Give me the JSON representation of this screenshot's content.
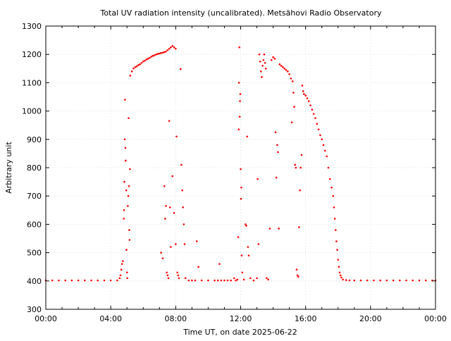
{
  "chart_data": {
    "type": "scatter",
    "title": "Total UV radiation intensity (uncalibrated). Metsähovi Radio Observatory",
    "xlabel": "Time UT, on date 2025-06-22",
    "ylabel": "Arbitrary unit",
    "xlim": [
      0,
      24
    ],
    "ylim": [
      300,
      1300
    ],
    "grid": true,
    "marker_color": "#ff0000",
    "x_ticks": [
      {
        "value": 0,
        "label": "00:00"
      },
      {
        "value": 4,
        "label": "04:00"
      },
      {
        "value": 8,
        "label": "08:00"
      },
      {
        "value": 12,
        "label": "12:00"
      },
      {
        "value": 16,
        "label": "16:00"
      },
      {
        "value": 20,
        "label": "20:00"
      },
      {
        "value": 24,
        "label": "00:00"
      }
    ],
    "y_ticks": [
      {
        "value": 300,
        "label": "300"
      },
      {
        "value": 400,
        "label": "400"
      },
      {
        "value": 500,
        "label": "500"
      },
      {
        "value": 600,
        "label": "600"
      },
      {
        "value": 700,
        "label": "700"
      },
      {
        "value": 800,
        "label": "800"
      },
      {
        "value": 900,
        "label": "900"
      },
      {
        "value": 1000,
        "label": "1000"
      },
      {
        "value": 1100,
        "label": "1100"
      },
      {
        "value": 1200,
        "label": "1200"
      },
      {
        "value": 1300,
        "label": "1300"
      }
    ],
    "points": [
      [
        0.0,
        402
      ],
      [
        0.4,
        402
      ],
      [
        0.8,
        402
      ],
      [
        1.2,
        402
      ],
      [
        1.6,
        402
      ],
      [
        2.0,
        402
      ],
      [
        2.4,
        402
      ],
      [
        2.8,
        402
      ],
      [
        3.2,
        402
      ],
      [
        3.6,
        402
      ],
      [
        4.0,
        402
      ],
      [
        4.4,
        402
      ],
      [
        4.55,
        410
      ],
      [
        4.6,
        420
      ],
      [
        4.65,
        440
      ],
      [
        4.7,
        460
      ],
      [
        4.75,
        470
      ],
      [
        4.8,
        620
      ],
      [
        4.82,
        650
      ],
      [
        4.84,
        750
      ],
      [
        4.86,
        900
      ],
      [
        4.88,
        1040
      ],
      [
        4.9,
        870
      ],
      [
        4.92,
        825
      ],
      [
        4.95,
        720
      ],
      [
        4.97,
        510
      ],
      [
        5.0,
        430
      ],
      [
        5.02,
        410
      ],
      [
        5.05,
        665
      ],
      [
        5.08,
        700
      ],
      [
        5.1,
        975
      ],
      [
        5.12,
        735
      ],
      [
        5.14,
        580
      ],
      [
        5.16,
        545
      ],
      [
        5.18,
        795
      ],
      [
        5.2,
        1125
      ],
      [
        5.3,
        1140
      ],
      [
        5.4,
        1150
      ],
      [
        5.5,
        1155
      ],
      [
        5.6,
        1158
      ],
      [
        5.7,
        1162
      ],
      [
        5.8,
        1165
      ],
      [
        5.9,
        1170
      ],
      [
        6.0,
        1175
      ],
      [
        6.1,
        1178
      ],
      [
        6.2,
        1182
      ],
      [
        6.3,
        1185
      ],
      [
        6.4,
        1188
      ],
      [
        6.5,
        1192
      ],
      [
        6.6,
        1195
      ],
      [
        6.7,
        1197
      ],
      [
        6.8,
        1200
      ],
      [
        6.9,
        1202
      ],
      [
        7.0,
        1203
      ],
      [
        7.1,
        1205
      ],
      [
        7.2,
        1206
      ],
      [
        7.3,
        1208
      ],
      [
        7.4,
        1210
      ],
      [
        7.5,
        1215
      ],
      [
        7.6,
        1220
      ],
      [
        7.7,
        1225
      ],
      [
        7.8,
        1230
      ],
      [
        7.9,
        1225
      ],
      [
        8.0,
        1220
      ],
      [
        7.1,
        500
      ],
      [
        7.2,
        480
      ],
      [
        7.3,
        735
      ],
      [
        7.35,
        620
      ],
      [
        7.4,
        665
      ],
      [
        7.45,
        430
      ],
      [
        7.5,
        420
      ],
      [
        7.55,
        410
      ],
      [
        7.6,
        965
      ],
      [
        7.65,
        660
      ],
      [
        7.7,
        520
      ],
      [
        7.8,
        770
      ],
      [
        7.9,
        640
      ],
      [
        8.0,
        530
      ],
      [
        8.05,
        910
      ],
      [
        8.1,
        430
      ],
      [
        8.15,
        420
      ],
      [
        8.2,
        410
      ],
      [
        8.3,
        1148
      ],
      [
        8.35,
        810
      ],
      [
        8.4,
        720
      ],
      [
        8.45,
        660
      ],
      [
        8.5,
        600
      ],
      [
        8.55,
        530
      ],
      [
        8.6,
        410
      ],
      [
        8.8,
        402
      ],
      [
        9.0,
        402
      ],
      [
        9.2,
        402
      ],
      [
        9.3,
        540
      ],
      [
        9.4,
        450
      ],
      [
        9.6,
        402
      ],
      [
        10.0,
        402
      ],
      [
        10.4,
        402
      ],
      [
        10.6,
        402
      ],
      [
        10.7,
        460
      ],
      [
        10.8,
        402
      ],
      [
        11.0,
        402
      ],
      [
        11.2,
        402
      ],
      [
        11.4,
        402
      ],
      [
        11.6,
        410
      ],
      [
        11.7,
        402
      ],
      [
        11.8,
        405
      ],
      [
        11.85,
        555
      ],
      [
        11.88,
        935
      ],
      [
        11.9,
        1100
      ],
      [
        11.92,
        1225
      ],
      [
        11.94,
        980
      ],
      [
        11.96,
        1035
      ],
      [
        11.98,
        1060
      ],
      [
        12.0,
        795
      ],
      [
        12.02,
        690
      ],
      [
        12.04,
        730
      ],
      [
        12.06,
        490
      ],
      [
        12.1,
        430
      ],
      [
        12.2,
        405
      ],
      [
        12.3,
        600
      ],
      [
        12.35,
        595
      ],
      [
        12.4,
        910
      ],
      [
        12.45,
        520
      ],
      [
        12.5,
        490
      ],
      [
        12.6,
        410
      ],
      [
        12.8,
        402
      ],
      [
        13.0,
        410
      ],
      [
        13.05,
        760
      ],
      [
        13.1,
        530
      ],
      [
        13.15,
        1200
      ],
      [
        13.2,
        1175
      ],
      [
        13.25,
        1140
      ],
      [
        13.3,
        1120
      ],
      [
        13.35,
        1160
      ],
      [
        13.4,
        1180
      ],
      [
        13.45,
        1200
      ],
      [
        13.5,
        1170
      ],
      [
        13.55,
        1150
      ],
      [
        13.6,
        410
      ],
      [
        13.7,
        405
      ],
      [
        13.8,
        585
      ],
      [
        13.9,
        1180
      ],
      [
        14.0,
        1190
      ],
      [
        14.1,
        1185
      ],
      [
        14.15,
        925
      ],
      [
        14.2,
        765
      ],
      [
        14.25,
        880
      ],
      [
        14.3,
        855
      ],
      [
        14.35,
        585
      ],
      [
        14.4,
        1165
      ],
      [
        14.5,
        1160
      ],
      [
        14.6,
        1155
      ],
      [
        14.7,
        1150
      ],
      [
        14.8,
        1145
      ],
      [
        14.9,
        1140
      ],
      [
        15.0,
        1130
      ],
      [
        15.1,
        1115
      ],
      [
        15.15,
        960
      ],
      [
        15.2,
        1105
      ],
      [
        15.25,
        1065
      ],
      [
        15.3,
        1015
      ],
      [
        15.35,
        810
      ],
      [
        15.4,
        800
      ],
      [
        15.45,
        440
      ],
      [
        15.5,
        420
      ],
      [
        15.55,
        415
      ],
      [
        15.6,
        590
      ],
      [
        15.65,
        720
      ],
      [
        15.7,
        800
      ],
      [
        15.75,
        845
      ],
      [
        15.8,
        1090
      ],
      [
        15.85,
        1070
      ],
      [
        15.9,
        1060
      ],
      [
        16.0,
        1055
      ],
      [
        16.1,
        1045
      ],
      [
        16.2,
        1035
      ],
      [
        16.3,
        1020
      ],
      [
        16.4,
        1005
      ],
      [
        16.5,
        990
      ],
      [
        16.6,
        975
      ],
      [
        16.7,
        955
      ],
      [
        16.8,
        935
      ],
      [
        16.9,
        915
      ],
      [
        17.0,
        900
      ],
      [
        17.1,
        880
      ],
      [
        17.2,
        860
      ],
      [
        17.3,
        840
      ],
      [
        17.4,
        800
      ],
      [
        17.5,
        760
      ],
      [
        17.6,
        730
      ],
      [
        17.7,
        700
      ],
      [
        17.75,
        660
      ],
      [
        17.8,
        620
      ],
      [
        17.85,
        580
      ],
      [
        17.9,
        540
      ],
      [
        17.95,
        510
      ],
      [
        18.0,
        475
      ],
      [
        18.05,
        450
      ],
      [
        18.1,
        430
      ],
      [
        18.15,
        420
      ],
      [
        18.2,
        412
      ],
      [
        18.3,
        405
      ],
      [
        18.5,
        403
      ],
      [
        18.7,
        402
      ],
      [
        19.0,
        402
      ],
      [
        19.4,
        402
      ],
      [
        19.8,
        402
      ],
      [
        20.2,
        402
      ],
      [
        20.6,
        402
      ],
      [
        21.0,
        402
      ],
      [
        21.4,
        402
      ],
      [
        21.8,
        402
      ],
      [
        22.2,
        402
      ],
      [
        22.6,
        402
      ],
      [
        23.0,
        402
      ],
      [
        23.4,
        402
      ],
      [
        23.8,
        402
      ],
      [
        24.0,
        402
      ]
    ]
  }
}
